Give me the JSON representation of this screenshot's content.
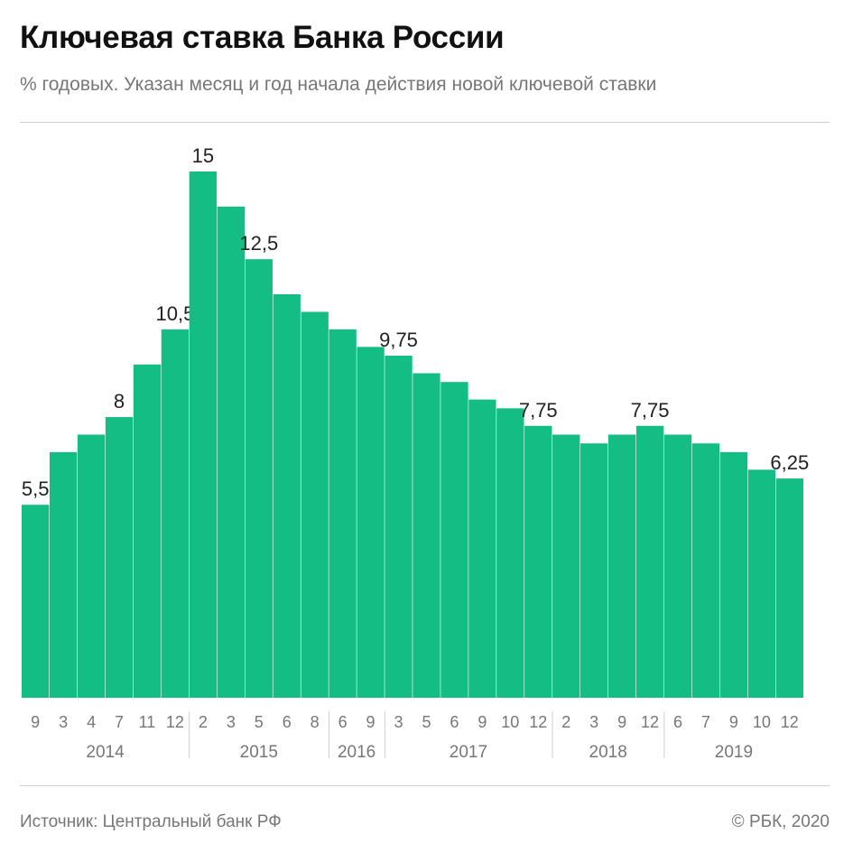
{
  "header": {
    "title": "Ключевая ставка Банка России",
    "subtitle": "% годовых. Указан месяц и год начала действия новой ключевой ставки"
  },
  "footer": {
    "source": "Источник: Центральный банк РФ",
    "copyright": "© РБК, 2020"
  },
  "colors": {
    "bar": "#14bd83",
    "axis_text": "#777777",
    "label_text": "#222222",
    "divider": "#cfcfcf"
  },
  "chart_data": {
    "type": "bar",
    "ylim": [
      0,
      15
    ],
    "grid": false,
    "categories": [
      "9",
      "3",
      "4",
      "7",
      "11",
      "12",
      "2",
      "3",
      "5",
      "6",
      "8",
      "6",
      "9",
      "3",
      "5",
      "6",
      "9",
      "10",
      "12",
      "2",
      "3",
      "9",
      "12",
      "6",
      "7",
      "9",
      "10",
      "12"
    ],
    "values": [
      5.5,
      7,
      7.5,
      8,
      9.5,
      10.5,
      15,
      14,
      12.5,
      11.5,
      11,
      10.5,
      10,
      9.75,
      9.25,
      9,
      8.5,
      8.25,
      7.75,
      7.5,
      7.25,
      7.5,
      7.75,
      7.5,
      7.25,
      7,
      6.5,
      6.25
    ],
    "data_labels": [
      "5,5",
      "",
      "",
      "8",
      "",
      "10,5",
      "15",
      "",
      "12,5",
      "",
      "",
      "",
      "",
      "9,75",
      "",
      "",
      "",
      "",
      "7,75",
      "",
      "",
      "",
      "7,75",
      "",
      "",
      "",
      "",
      "6,25"
    ],
    "year_groups": [
      {
        "label": "2014",
        "start": 0,
        "end": 5
      },
      {
        "label": "2015",
        "start": 6,
        "end": 10
      },
      {
        "label": "2016",
        "start": 11,
        "end": 12
      },
      {
        "label": "2017",
        "start": 13,
        "end": 18
      },
      {
        "label": "2018",
        "start": 19,
        "end": 22
      },
      {
        "label": "2019",
        "start": 23,
        "end": 27
      }
    ],
    "year_axis_label_positions": "centered"
  }
}
